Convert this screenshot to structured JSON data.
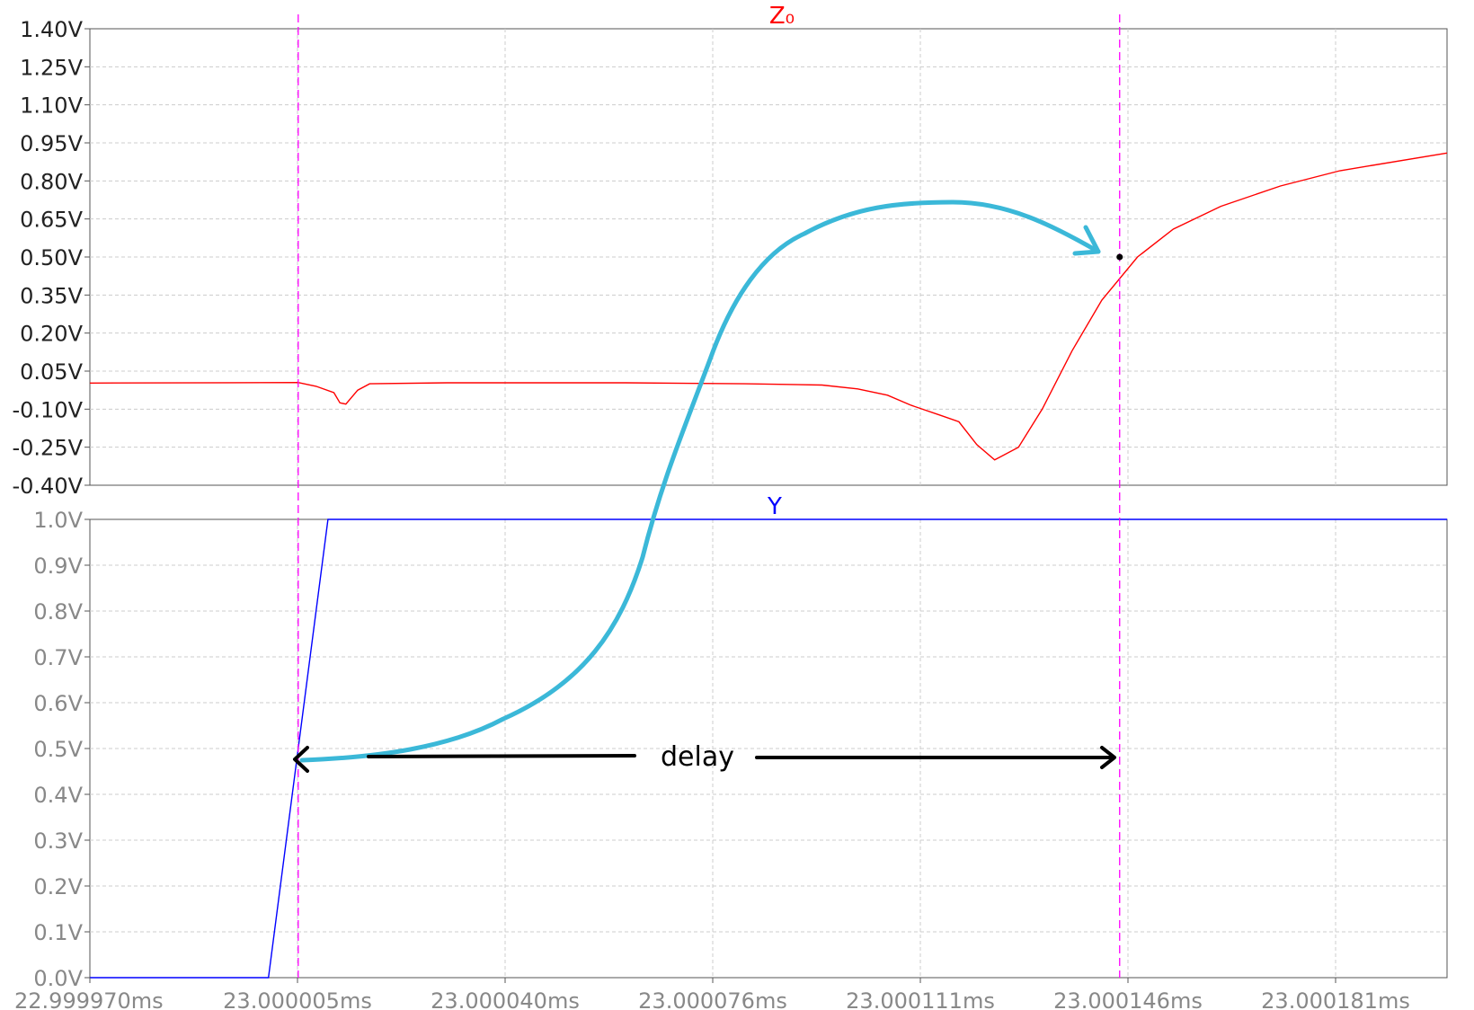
{
  "chart_data": [
    {
      "type": "line",
      "title": "Z₀",
      "title_color": "#ff0000",
      "y_tick_labels": [
        "1.40V",
        "1.25V",
        "1.10V",
        "0.95V",
        "0.80V",
        "0.65V",
        "0.50V",
        "0.35V",
        "0.20V",
        "0.05V",
        "-0.10V",
        "-0.25V",
        "-0.40V"
      ],
      "ylim": [
        -0.4,
        1.4
      ],
      "xlim": [
        22.99997,
        23.000198
      ],
      "grid": true,
      "series": [
        {
          "color": "#ff0000",
          "x": [
            22.99997,
            23.000005,
            23.000008,
            23.000011,
            23.000012,
            23.000013,
            23.000015,
            23.000017,
            23.00003,
            23.00006,
            23.00008,
            23.000093,
            23.000099,
            23.000104,
            23.000108,
            23.000113,
            23.000116,
            23.000119,
            23.000122,
            23.000126,
            23.00013,
            23.000135,
            23.00014,
            23.000146,
            23.000152,
            23.00016,
            23.00017,
            23.00018,
            23.000198
          ],
          "values": [
            0.003,
            0.005,
            -0.01,
            -0.035,
            -0.075,
            -0.08,
            -0.025,
            0.0,
            0.004,
            0.004,
            0.0,
            -0.005,
            -0.02,
            -0.045,
            -0.085,
            -0.125,
            -0.15,
            -0.24,
            -0.3,
            -0.25,
            -0.1,
            0.13,
            0.33,
            0.5,
            0.61,
            0.7,
            0.78,
            0.84,
            0.91
          ]
        }
      ]
    },
    {
      "type": "line",
      "title": "Y",
      "title_color": "#0000ff",
      "y_tick_labels": [
        "1.0V",
        "0.9V",
        "0.8V",
        "0.7V",
        "0.6V",
        "0.5V",
        "0.4V",
        "0.3V",
        "0.2V",
        "0.1V",
        "0.0V"
      ],
      "ylim": [
        0.0,
        1.0
      ],
      "xlim": [
        22.99997,
        23.000198
      ],
      "x_tick_labels": [
        "22.999970ms",
        "23.000005ms",
        "23.000040ms",
        "23.000076ms",
        "23.000111ms",
        "23.000146ms",
        "23.000181ms"
      ],
      "grid": true,
      "series": [
        {
          "color": "#0000ff",
          "x": [
            22.99997,
            22.99999,
            23.0,
            23.00001,
            23.000198
          ],
          "values": [
            0.0,
            0.0,
            0.0,
            1.0,
            1.0
          ]
        }
      ]
    }
  ],
  "cursors": {
    "color": "#ff00ff",
    "x": [
      23.000005,
      23.000143
    ]
  },
  "annotations": {
    "delay_label": "delay",
    "arrow_color": "#000000",
    "curve_color": "#3bb8d8"
  },
  "colors": {
    "grid": "#cccccc",
    "frame": "#555555",
    "axis_text": "#222222",
    "axis_text_light": "#888888"
  }
}
